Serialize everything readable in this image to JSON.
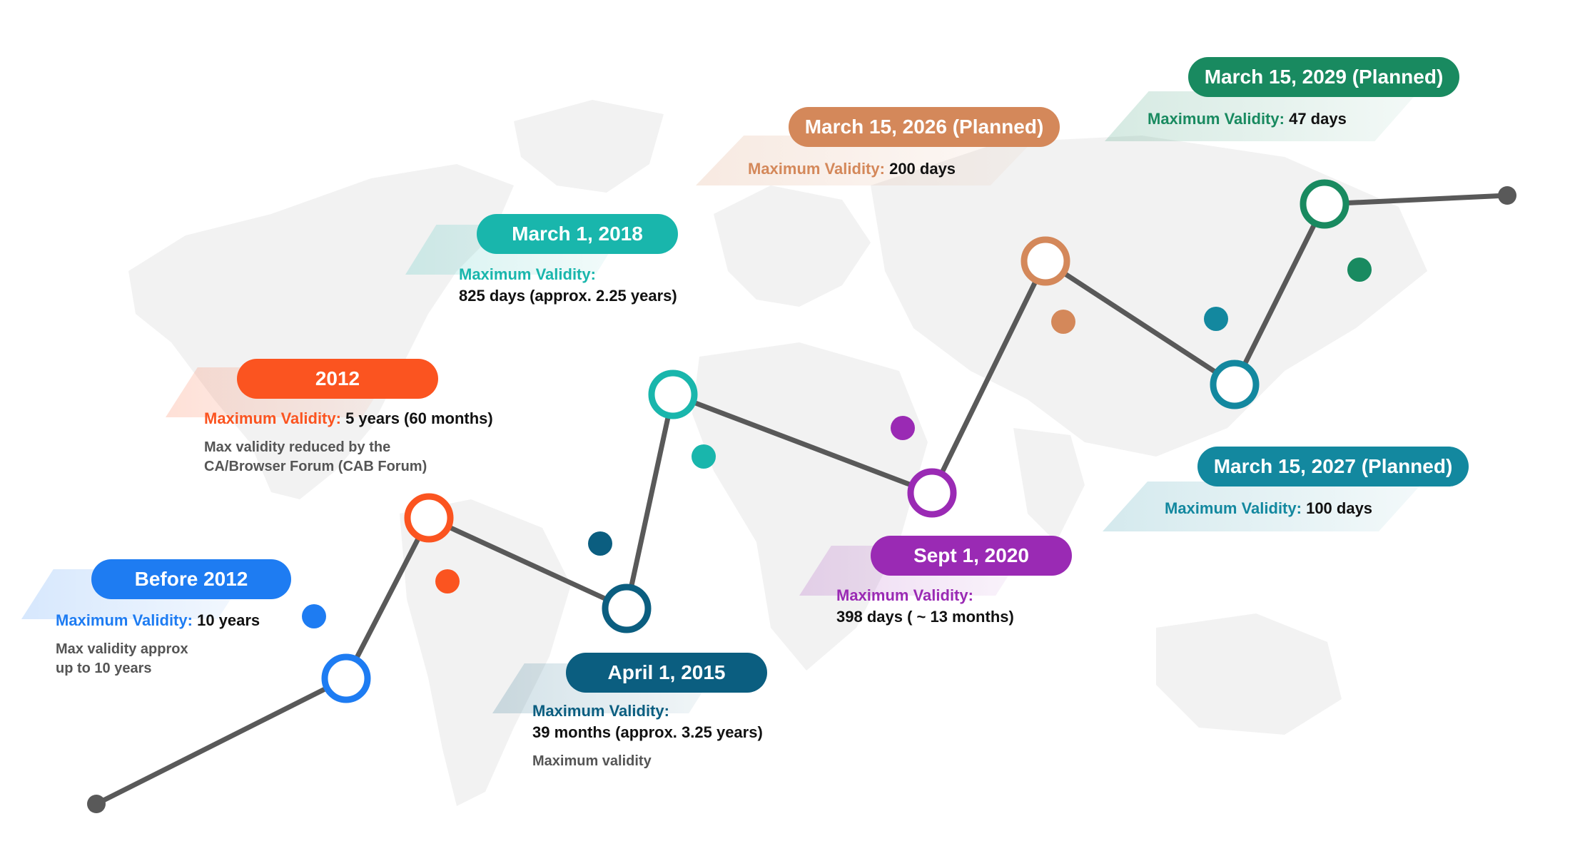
{
  "colors": {
    "before2012": "#1e7cf2",
    "y2012": "#fb5420",
    "apr2015": "#0b5e80",
    "mar2018": "#19b6ac",
    "sep2020": "#9a2ab4",
    "mar2026": "#d4885a",
    "mar2027": "#13889f",
    "mar2029": "#198a60",
    "line": "#595959",
    "map": "#f2f2f2"
  },
  "milestones": [
    {
      "id": "before2012",
      "date": "Before 2012",
      "validity_label": "Maximum Validity:",
      "validity_value": "10 years",
      "note": "Max validity approx up to 10 years"
    },
    {
      "id": "y2012",
      "date": "2012",
      "validity_label": "Maximum Validity:",
      "validity_value": "5 years (60 months)",
      "note": "Max validity reduced by the CA/Browser Forum (CAB Forum)"
    },
    {
      "id": "apr2015",
      "date": "April 1, 2015",
      "validity_label": "Maximum Validity:",
      "validity_value": "39 months (approx. 3.25 years)",
      "note": "Maximum validity"
    },
    {
      "id": "mar2018",
      "date": "March 1, 2018",
      "validity_label": "Maximum Validity:",
      "validity_value": "825 days (approx. 2.25 years)"
    },
    {
      "id": "sep2020",
      "date": "Sept 1, 2020",
      "validity_label": "Maximum Validity:",
      "validity_value": "398 days ( ~ 13 months)"
    },
    {
      "id": "mar2026",
      "date": "March 15, 2026 (Planned)",
      "validity_label": "Maximum Validity:",
      "validity_value": "200 days"
    },
    {
      "id": "mar2027",
      "date": "March 15, 2027 (Planned)",
      "validity_label": "Maximum Validity:",
      "validity_value": "100 days"
    },
    {
      "id": "mar2029",
      "date": "March 15, 2029 (Planned)",
      "validity_label": "Maximum Validity:",
      "validity_value": "47 days"
    }
  ]
}
